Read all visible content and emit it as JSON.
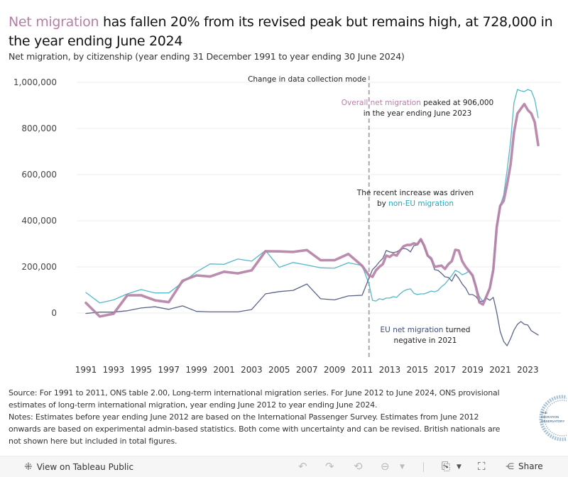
{
  "header": {
    "title_highlight": "Net migration",
    "title_rest": " has fallen 20% from its revised peak but remains high, at 728,000 in the year ending June 2024",
    "subtitle": "Net migration, by citizenship (year ending 31 December 1991 to year ending 30 June 2024)"
  },
  "colors": {
    "total": "#b57fa6",
    "non_eu": "#55b8c8",
    "eu": "#5b6488",
    "grid": "#ececec",
    "divider": "#aaaaaa"
  },
  "annotations": {
    "collection_mode": "Change in data collection mode",
    "peak_hl": "Overall net migration",
    "peak_rest": " peaked at 906,000",
    "peak_line2": "in the year ending June 2023",
    "driven_line1": "The recent increase was driven",
    "driven_pre": "by ",
    "driven_hl": "non-EU migration",
    "eu_hl": "EU net migration",
    "eu_rest": " turned",
    "eu_line2": "negative in 2021"
  },
  "chart_data": {
    "type": "line",
    "title": "Net migration has fallen 20% from its revised peak but remains high, at 728,000 in the year ending June 2024",
    "subtitle": "Net migration, by citizenship (year ending 31 December 1991 to year ending 30 June 2024)",
    "xlabel": "",
    "ylabel": "",
    "xlim": [
      1990.3,
      2024.3
    ],
    "ylim": [
      -200000,
      1000000
    ],
    "grid": true,
    "y_ticks": [
      0,
      200000,
      400000,
      600000,
      800000,
      1000000
    ],
    "y_tick_labels": [
      "0",
      "200,000",
      "400,000",
      "600,000",
      "800,000",
      "1,000,000"
    ],
    "x_ticks": [
      1991,
      1993,
      1995,
      1997,
      1999,
      2001,
      2003,
      2005,
      2007,
      2009,
      2011,
      2013,
      2015,
      2017,
      2019,
      2021,
      2023
    ],
    "x_tick_labels": [
      "1991",
      "1993",
      "1995",
      "1997",
      "1999",
      "2001",
      "2003",
      "2005",
      "2007",
      "2009",
      "2011",
      "2013",
      "2015",
      "2017",
      "2019",
      "2021",
      "2023"
    ],
    "divider_x": 2011.5,
    "annual_x": [
      1991,
      1992,
      1993,
      1994,
      1995,
      1996,
      1997,
      1998,
      1999,
      2000,
      2001,
      2002,
      2003,
      2004,
      2005,
      2006,
      2007,
      2008,
      2009,
      2010,
      2011
    ],
    "quarterly_x": [
      2011.5,
      2011.75,
      2012,
      2012.25,
      2012.5,
      2012.75,
      2013,
      2013.25,
      2013.5,
      2013.75,
      2014,
      2014.25,
      2014.5,
      2014.75,
      2015,
      2015.25,
      2015.5,
      2015.75,
      2016,
      2016.25,
      2016.5,
      2016.75,
      2017,
      2017.25,
      2017.5,
      2017.75,
      2018,
      2018.25,
      2018.5,
      2018.75,
      2019,
      2019.25,
      2019.5,
      2019.75,
      2020,
      2020.25,
      2020.5,
      2020.75,
      2021,
      2021.25,
      2021.5,
      2021.75,
      2022,
      2022.25,
      2022.5,
      2022.75,
      2023,
      2023.25,
      2023.5,
      2023.75
    ],
    "series": [
      {
        "name": "Non-EU net migration",
        "key": "non_eu",
        "annual": [
          89000,
          44000,
          57000,
          83000,
          102000,
          87000,
          87000,
          133000,
          178000,
          213000,
          211000,
          234000,
          225000,
          271000,
          198000,
          219000,
          208000,
          196000,
          194000,
          218000,
          206000
        ],
        "quarterly": [
          126000,
          55000,
          52000,
          62000,
          58000,
          65000,
          65000,
          71000,
          68000,
          83000,
          95000,
          102000,
          105000,
          86000,
          80000,
          83000,
          83000,
          89000,
          95000,
          92000,
          98000,
          114000,
          126000,
          145000,
          163000,
          185000,
          178000,
          166000,
          172000,
          182000,
          157000,
          117000,
          71000,
          49000,
          74000,
          111000,
          188000,
          378000,
          465000,
          511000,
          618000,
          742000,
          911000,
          969000,
          963000,
          960000,
          969000,
          963000,
          926000,
          846000
        ]
      },
      {
        "name": "EU net migration",
        "key": "eu",
        "annual": [
          -2000,
          4000,
          4000,
          10000,
          22000,
          27000,
          16000,
          31000,
          7000,
          5000,
          5000,
          5000,
          15000,
          83000,
          93000,
          98000,
          126000,
          62000,
          57000,
          74000,
          77000
        ],
        "quarterly": [
          151000,
          188000,
          203000,
          222000,
          237000,
          271000,
          265000,
          262000,
          265000,
          274000,
          280000,
          277000,
          265000,
          292000,
          295000,
          320000,
          283000,
          246000,
          231000,
          188000,
          185000,
          172000,
          157000,
          154000,
          138000,
          169000,
          151000,
          126000,
          108000,
          80000,
          80000,
          71000,
          49000,
          52000,
          65000,
          55000,
          68000,
          3000,
          -80000,
          -123000,
          -142000,
          -111000,
          -74000,
          -49000,
          -37000,
          -49000,
          -52000,
          -77000,
          -86000,
          -95000
        ]
      },
      {
        "name": "Overall net migration",
        "key": "total",
        "annual": [
          44000,
          -15000,
          -3000,
          77000,
          77000,
          55000,
          47000,
          140000,
          163000,
          158000,
          179000,
          172000,
          185000,
          268000,
          267000,
          265000,
          273000,
          229000,
          229000,
          256000,
          205000
        ],
        "quarterly": [
          163000,
          157000,
          185000,
          200000,
          212000,
          249000,
          243000,
          255000,
          249000,
          271000,
          289000,
          295000,
          295000,
          302000,
          298000,
          320000,
          292000,
          249000,
          237000,
          200000,
          203000,
          206000,
          191000,
          212000,
          225000,
          274000,
          271000,
          225000,
          200000,
          182000,
          163000,
          111000,
          46000,
          37000,
          71000,
          108000,
          188000,
          372000,
          465000,
          486000,
          557000,
          643000,
          782000,
          865000,
          886000,
          906000,
          880000,
          865000,
          828000,
          728000
        ]
      }
    ]
  },
  "source": {
    "line1": "Source: For 1991 to 2011, ONS table 2.00, Long-term international migration series. For June 2012 to June 2024, ONS provisional estimates of long-term international migration, year ending June 2012 to year ending June 2024.",
    "line2": "Notes: Estimates before year ending June 2012 are based on the International Passenger Survey. Estimates from June 2012 onwards are based on experimental admin-based statistics. Both come with uncertainty and can be revised. British nationals are not shown here but included in total figures."
  },
  "logo": {
    "line1": "THE",
    "line2": "MIGRATION",
    "line3": "OBSERVATORY"
  },
  "footer": {
    "view_label": "View on Tableau Public",
    "share_label": "Share",
    "icons": [
      "tableau-icon",
      "undo-icon",
      "redo-icon",
      "revert-icon",
      "pause-icon",
      "download-icon",
      "fullscreen-icon",
      "share-icon"
    ]
  }
}
